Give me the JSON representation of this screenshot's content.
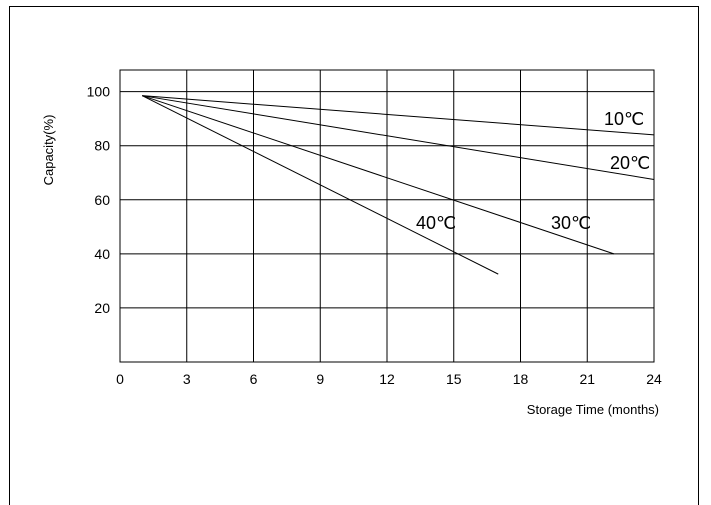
{
  "chart_data": {
    "type": "line",
    "title": "",
    "xlabel": "Storage Time (months)",
    "ylabel": "Capacity(%)",
    "xlim": [
      0,
      24
    ],
    "ylim": [
      0,
      108
    ],
    "xticks": [
      0,
      3,
      6,
      9,
      12,
      15,
      18,
      21,
      24
    ],
    "yticks": [
      20,
      40,
      60,
      80,
      100
    ],
    "grid": true,
    "legend": "none",
    "series": [
      {
        "name": "10",
        "unit": "℃",
        "x": [
          1,
          24
        ],
        "y": [
          98.5,
          84
        ]
      },
      {
        "name": "20",
        "unit": "℃",
        "x": [
          1,
          24
        ],
        "y": [
          98.5,
          67.5
        ]
      },
      {
        "name": "30",
        "unit": "℃",
        "x": [
          1,
          22.2
        ],
        "y": [
          98.5,
          40
        ]
      },
      {
        "name": "40",
        "unit": "℃",
        "x": [
          1,
          17
        ],
        "y": [
          98.5,
          32.5
        ]
      }
    ]
  }
}
